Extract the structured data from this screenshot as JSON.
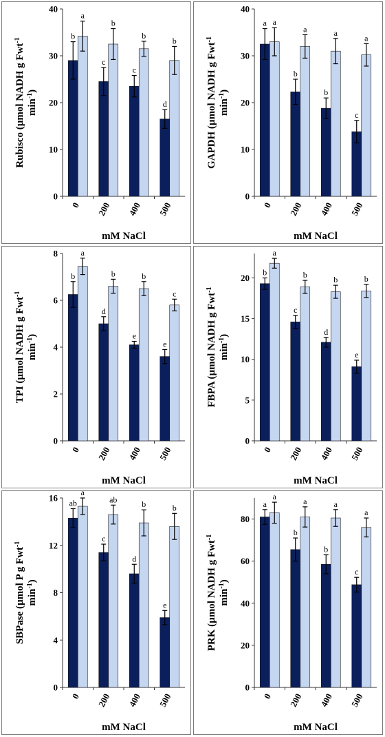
{
  "colors": {
    "dark": "#0b1f5c",
    "light": "#c5d6f0",
    "axis": "#333333",
    "border": "#7a7a7a"
  },
  "chart_data": [
    {
      "type": "bar",
      "title": "",
      "ylabel": "Rubisco (µmol NADH g Fwt⁻¹ min⁻¹)",
      "xlabel": "mM NaCl",
      "categories": [
        "0",
        "200",
        "400",
        "500"
      ],
      "ylim": [
        0,
        40
      ],
      "yticks": [
        "0",
        "10",
        "20",
        "30",
        "40"
      ],
      "series": [
        {
          "values": [
            29.0,
            24.5,
            23.5,
            16.5
          ],
          "errors": [
            4.0,
            3.0,
            2.3,
            2.0
          ],
          "letters": [
            "b",
            "c",
            "c",
            "d"
          ]
        },
        {
          "values": [
            34.2,
            32.5,
            31.5,
            29.0
          ],
          "errors": [
            3.2,
            3.3,
            1.6,
            3.0
          ],
          "letters": [
            "a",
            "b",
            "b",
            "b"
          ]
        }
      ]
    },
    {
      "type": "bar",
      "title": "",
      "ylabel": "GAPDH (µmol NADH g Fwt⁻¹ min⁻¹)",
      "xlabel": "mM NaCl",
      "categories": [
        "0",
        "200",
        "400",
        "500"
      ],
      "ylim": [
        0,
        40
      ],
      "yticks": [
        "0",
        "10",
        "20",
        "30",
        "40"
      ],
      "series": [
        {
          "values": [
            32.5,
            22.3,
            18.8,
            13.8
          ],
          "errors": [
            3.3,
            2.7,
            2.2,
            2.4
          ],
          "letters": [
            "a",
            "b",
            "b",
            "c"
          ]
        },
        {
          "values": [
            33.0,
            32.0,
            31.0,
            30.2
          ],
          "errors": [
            3.0,
            2.5,
            2.7,
            2.4
          ],
          "letters": [
            "a",
            "a",
            "a",
            "a"
          ]
        }
      ]
    },
    {
      "type": "bar",
      "title": "",
      "ylabel": "TPI (µmol NADH g Fwt⁻¹ min⁻¹)",
      "xlabel": "mM NaCl",
      "categories": [
        "0",
        "200",
        "400",
        "500"
      ],
      "ylim": [
        0,
        8
      ],
      "yticks": [
        "0",
        "2",
        "4",
        "6",
        "8"
      ],
      "series": [
        {
          "values": [
            6.25,
            5.0,
            4.1,
            3.6
          ],
          "errors": [
            0.55,
            0.3,
            0.15,
            0.3
          ],
          "letters": [
            "b",
            "d",
            "e",
            "e"
          ]
        },
        {
          "values": [
            7.45,
            6.6,
            6.5,
            5.8
          ],
          "errors": [
            0.35,
            0.3,
            0.3,
            0.25
          ],
          "letters": [
            "a",
            "b",
            "b",
            "c"
          ]
        }
      ]
    },
    {
      "type": "bar",
      "title": "",
      "ylabel": "FBPA (µmol NADH g Fwt⁻¹ min⁻¹)",
      "xlabel": "mM NaCl",
      "categories": [
        "0",
        "200",
        "400",
        "500"
      ],
      "ylim": [
        0,
        23
      ],
      "yticks": [
        "0",
        "5",
        "10",
        "15",
        "20"
      ],
      "series": [
        {
          "values": [
            19.3,
            14.6,
            12.1,
            9.1
          ],
          "errors": [
            0.7,
            0.8,
            0.6,
            0.8
          ],
          "letters": [
            "b",
            "c",
            "d",
            "e"
          ]
        },
        {
          "values": [
            21.8,
            18.9,
            18.3,
            18.4
          ],
          "errors": [
            0.6,
            0.8,
            0.8,
            0.8
          ],
          "letters": [
            "a",
            "b",
            "b",
            "b"
          ]
        }
      ]
    },
    {
      "type": "bar",
      "title": "",
      "ylabel": "SBPase (µmol P g Fwt⁻¹ min⁻¹)",
      "xlabel": "mM NaCl",
      "categories": [
        "0",
        "200",
        "400",
        "500"
      ],
      "ylim": [
        0,
        16
      ],
      "yticks": [
        "0",
        "4",
        "8",
        "12",
        "16"
      ],
      "series": [
        {
          "values": [
            14.3,
            11.4,
            9.6,
            5.9
          ],
          "errors": [
            0.8,
            0.7,
            0.8,
            0.6
          ],
          "letters": [
            "ab",
            "c",
            "d",
            "e"
          ]
        },
        {
          "values": [
            15.3,
            14.6,
            13.9,
            13.6
          ],
          "errors": [
            0.7,
            0.8,
            1.1,
            1.1
          ],
          "letters": [
            "a",
            "ab",
            "b",
            "b"
          ]
        }
      ]
    },
    {
      "type": "bar",
      "title": "",
      "ylabel": "PRK (µmol NADH g Fwt⁻¹ min⁻¹)",
      "xlabel": "mM NaCl",
      "categories": [
        "0",
        "200",
        "400",
        "500"
      ],
      "ylim": [
        0,
        90
      ],
      "yticks": [
        "0",
        "20",
        "40",
        "60",
        "80"
      ],
      "series": [
        {
          "values": [
            81.0,
            65.5,
            58.5,
            48.8
          ],
          "errors": [
            3.5,
            5.5,
            4.5,
            3.5
          ],
          "letters": [
            "a",
            "b",
            "b",
            "c"
          ]
        },
        {
          "values": [
            83.0,
            81.0,
            80.5,
            76.0
          ],
          "errors": [
            5.0,
            4.8,
            4.0,
            4.5
          ],
          "letters": [
            "a",
            "a",
            "a",
            "a"
          ]
        }
      ]
    }
  ]
}
